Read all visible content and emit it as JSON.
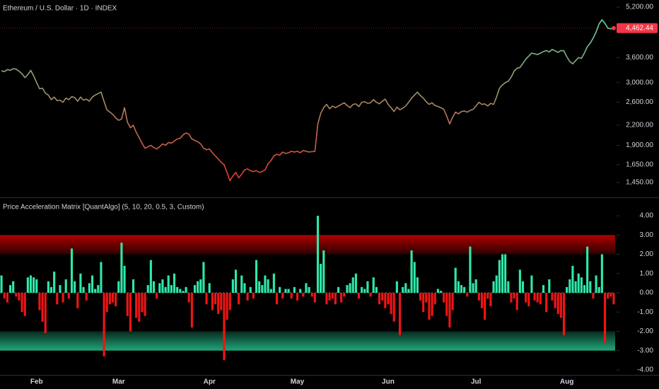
{
  "chart_data": [
    {
      "type": "line",
      "title": "Ethereum / U.S. Dollar · 1D · INDEX",
      "log": true,
      "ylim": [
        1308,
        5475
      ],
      "yticks": [
        {
          "value": 5200,
          "label": "5,200.00"
        },
        {
          "value": 3600,
          "label": "3,600.00"
        },
        {
          "value": 3000,
          "label": "3,000.00"
        },
        {
          "value": 2600,
          "label": "2,600.00"
        },
        {
          "value": 2200,
          "label": "2,200.00"
        },
        {
          "value": 1900,
          "label": "1,900.00"
        },
        {
          "value": 1650,
          "label": "1,650.00"
        },
        {
          "value": 1450,
          "label": "1,450.00"
        }
      ],
      "colors": {
        "low": "#e8392c",
        "mid": "#a68a66",
        "high": "#5fd6a0"
      },
      "last_color": "#f23645",
      "last_value_label": "4,462.44",
      "values": [
        3270,
        3250,
        3300,
        3280,
        3320,
        3310,
        3260,
        3200,
        3110,
        3180,
        3280,
        3150,
        3000,
        2870,
        2880,
        2780,
        2740,
        2650,
        2700,
        2630,
        2640,
        2600,
        2680,
        2650,
        2710,
        2690,
        2620,
        2700,
        2640,
        2660,
        2620,
        2700,
        2740,
        2770,
        2800,
        2620,
        2460,
        2420,
        2380,
        2320,
        2280,
        2300,
        2500,
        2250,
        2160,
        2200,
        2090,
        2010,
        1930,
        1860,
        1880,
        1900,
        1870,
        1850,
        1880,
        1920,
        1900,
        1940,
        1930,
        1960,
        1990,
        2000,
        2050,
        2080,
        2060,
        1990,
        1970,
        1950,
        1920,
        1860,
        1840,
        1850,
        1800,
        1760,
        1720,
        1680,
        1650,
        1560,
        1470,
        1520,
        1560,
        1500,
        1540,
        1590,
        1600,
        1580,
        1570,
        1580,
        1560,
        1570,
        1590,
        1660,
        1700,
        1760,
        1780,
        1770,
        1810,
        1790,
        1800,
        1820,
        1810,
        1820,
        1800,
        1830,
        1820,
        1810,
        1815,
        1818,
        2220,
        2400,
        2500,
        2560,
        2480,
        2530,
        2500,
        2530,
        2560,
        2590,
        2540,
        2500,
        2560,
        2570,
        2520,
        2600,
        2610,
        2580,
        2590,
        2650,
        2600,
        2570,
        2620,
        2660,
        2560,
        2500,
        2430,
        2510,
        2460,
        2490,
        2530,
        2600,
        2680,
        2740,
        2800,
        2730,
        2680,
        2610,
        2560,
        2590,
        2540,
        2520,
        2500,
        2470,
        2350,
        2220,
        2330,
        2420,
        2390,
        2430,
        2440,
        2420,
        2450,
        2470,
        2530,
        2600,
        2560,
        2570,
        2530,
        2580,
        2560,
        2700,
        2880,
        2950,
        3000,
        3030,
        3120,
        3260,
        3330,
        3350,
        3450,
        3560,
        3640,
        3720,
        3700,
        3680,
        3720,
        3760,
        3790,
        3750,
        3820,
        3780,
        3740,
        3790,
        3780,
        3620,
        3500,
        3440,
        3520,
        3600,
        3580,
        3720,
        3900,
        4000,
        4150,
        4340,
        4600,
        4740,
        4620,
        4460,
        4440,
        4462.44
      ]
    },
    {
      "type": "bar",
      "title": "Price Acceleration Matrix [QuantAlgo] (5, 10, 20, 0.5, 3, Custom)",
      "ylim": [
        -4.26,
        4.92
      ],
      "yticks": [
        {
          "value": 4,
          "label": "4.00"
        },
        {
          "value": 3,
          "label": "3.00"
        },
        {
          "value": 2,
          "label": "2.00"
        },
        {
          "value": 1,
          "label": "1.00"
        },
        {
          "value": 0,
          "label": "0.00"
        },
        {
          "value": -1,
          "label": "-1.00"
        },
        {
          "value": -2,
          "label": "-2.00"
        },
        {
          "value": -3,
          "label": "-3.00"
        },
        {
          "value": -4,
          "label": "-4.00"
        }
      ],
      "pos_color": "#2ee8a8",
      "neg_color": "#f01414",
      "bands": [
        {
          "from": 2,
          "to": 3,
          "color": "#b00000"
        },
        {
          "from": -3,
          "to": -2,
          "color": "#1fa67a"
        }
      ],
      "categories": [
        null,
        null,
        null,
        null,
        null,
        null,
        null,
        null,
        null,
        null,
        null,
        null,
        "Feb",
        null,
        null,
        null,
        null,
        null,
        null,
        null,
        null,
        null,
        null,
        null,
        null,
        null,
        null,
        null,
        null,
        null,
        null,
        null,
        null,
        null,
        null,
        null,
        null,
        null,
        null,
        null,
        "Mar",
        null,
        null,
        null,
        null,
        null,
        null,
        null,
        null,
        null,
        null,
        null,
        null,
        null,
        null,
        null,
        null,
        null,
        null,
        null,
        null,
        null,
        null,
        null,
        null,
        null,
        null,
        null,
        null,
        null,
        null,
        "Apr",
        null,
        null,
        null,
        null,
        null,
        null,
        null,
        null,
        null,
        null,
        null,
        null,
        null,
        null,
        null,
        null,
        null,
        null,
        null,
        null,
        null,
        null,
        null,
        null,
        null,
        null,
        null,
        null,
        null,
        "May",
        null,
        null,
        null,
        null,
        null,
        null,
        null,
        null,
        null,
        null,
        null,
        null,
        null,
        null,
        null,
        null,
        null,
        null,
        null,
        null,
        null,
        null,
        null,
        null,
        null,
        null,
        null,
        null,
        null,
        null,
        "Jun",
        null,
        null,
        null,
        null,
        null,
        null,
        null,
        null,
        null,
        null,
        null,
        null,
        null,
        null,
        null,
        null,
        null,
        null,
        null,
        null,
        null,
        null,
        null,
        null,
        null,
        null,
        null,
        null,
        null,
        "Jul",
        null,
        null,
        null,
        null,
        null,
        null,
        null,
        null,
        null,
        null,
        null,
        null,
        null,
        null,
        null,
        null,
        null,
        null,
        null,
        null,
        null,
        null,
        null,
        null,
        null,
        null,
        null,
        null,
        null,
        null,
        "Aug",
        null,
        null,
        null,
        null,
        null,
        null,
        null,
        null,
        null,
        null,
        null,
        null,
        null,
        null,
        null,
        null
      ],
      "values": [
        0.9,
        -0.3,
        -0.5,
        0.4,
        0.6,
        -0.2,
        -0.4,
        -1.0,
        -1.2,
        0.8,
        0.9,
        0.8,
        0.7,
        -0.9,
        -1.5,
        -2.1,
        0.6,
        0.3,
        1.1,
        -0.6,
        0.4,
        -0.5,
        0.7,
        -0.3,
        2.3,
        0.6,
        -0.8,
        1.0,
        0.3,
        -0.4,
        0.5,
        0.9,
        0.2,
        0.4,
        1.6,
        -3.3,
        -1.0,
        -0.6,
        -0.5,
        -0.7,
        0.6,
        2.6,
        1.4,
        -1.2,
        -2.0,
        0.7,
        -1.3,
        -1.5,
        -1.0,
        -1.2,
        0.4,
        1.7,
        0.6,
        -0.3,
        0.5,
        0.7,
        0.3,
        0.9,
        0.4,
        1.0,
        0.3,
        0.2,
        0.1,
        0.3,
        -0.5,
        -1.8,
        0.4,
        0.6,
        0.7,
        1.6,
        -0.6,
        0.5,
        -0.9,
        -0.6,
        -1.1,
        -0.9,
        -3.5,
        -1.4,
        -0.9,
        0.7,
        1.2,
        -0.6,
        0.9,
        0.5,
        -0.4,
        0.3,
        -0.3,
        1.7,
        0.6,
        0.4,
        0.9,
        0.7,
        0.2,
        1.0,
        -0.6,
        0.3,
        -0.3,
        0.2,
        0.2,
        -0.3,
        0.3,
        -0.4,
        0.2,
        -0.2,
        0.5,
        0.3,
        -0.2,
        -0.5,
        4.0,
        1.5,
        2.2,
        -0.6,
        -0.4,
        -0.3,
        -0.6,
        0.3,
        -0.5,
        -0.2,
        0.4,
        0.5,
        0.8,
        1.0,
        -0.3,
        0.3,
        0.2,
        0.6,
        -0.2,
        0.8,
        0.3,
        -0.6,
        -0.4,
        -0.8,
        -0.6,
        -1.1,
        -1.5,
        0.6,
        -2.2,
        0.3,
        0.5,
        0.2,
        2.2,
        1.6,
        0.8,
        -0.4,
        -1.0,
        -0.5,
        -1.4,
        -1.2,
        -0.6,
        0.2,
        0.1,
        -0.5,
        -1.2,
        -1.8,
        -0.9,
        1.3,
        0.6,
        0.4,
        0.3,
        -0.2,
        2.4,
        0.5,
        0.7,
        -0.4,
        -0.8,
        -1.4,
        -0.3,
        -0.7,
        0.6,
        0.9,
        1.7,
        2.0,
        2.0,
        0.6,
        -0.5,
        -0.3,
        -0.9,
        1.2,
        0.6,
        -0.5,
        -0.7,
        0.9,
        -0.4,
        -0.5,
        -0.6,
        0.4,
        -1.0,
        0.7,
        -0.4,
        -0.8,
        -1.1,
        -1.3,
        -2.2,
        0.3,
        0.7,
        1.4,
        0.6,
        1.0,
        0.8,
        0.4,
        2.4,
        0.6,
        -0.3,
        0.9,
        0.3,
        2.0,
        -2.6,
        -0.3,
        -0.2,
        -0.6
      ]
    }
  ]
}
